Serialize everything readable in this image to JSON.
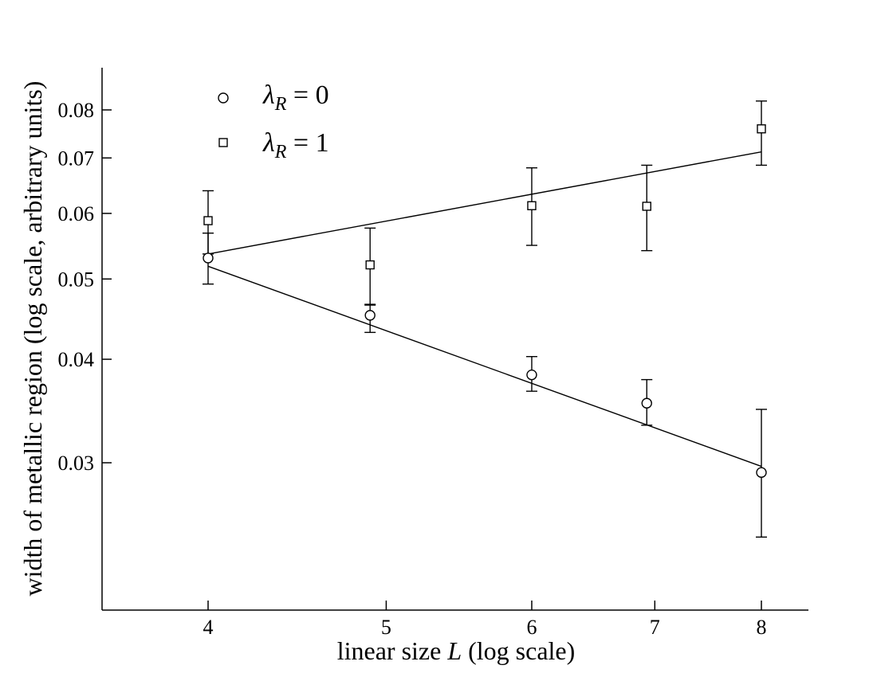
{
  "chart_data": {
    "type": "scatter",
    "xlabel": {
      "pre": "linear size ",
      "var": "L",
      "post": " (log scale)"
    },
    "ylabel": "width of metallic region (log scale, arbitrary units)",
    "x_scale": "log",
    "y_scale": "log",
    "xlim": [
      3.6,
      9.0
    ],
    "ylim": [
      0.0215,
      0.091
    ],
    "x_ticks": [
      4,
      5,
      6,
      7,
      8
    ],
    "x_tick_labels": [
      "4",
      "5",
      "6",
      "7",
      "8"
    ],
    "y_ticks": [
      0.03,
      0.04,
      0.05,
      0.06,
      0.07,
      0.08
    ],
    "y_tick_labels": [
      "0.03",
      "0.04",
      "0.05",
      "0.06",
      "0.07",
      "0.08"
    ],
    "grid": false,
    "legend_position": "top-left",
    "series": [
      {
        "name": "λR = 0",
        "legend": {
          "symbol": "λ",
          "sub": "R",
          "rest": " = 0"
        },
        "marker": "circle",
        "points": [
          {
            "x": 4.0,
            "y": 0.053,
            "err_low": 0.0493,
            "err_high": 0.0568
          },
          {
            "x": 4.9,
            "y": 0.0452,
            "err_low": 0.0431,
            "err_high": 0.0466
          },
          {
            "x": 6.0,
            "y": 0.0383,
            "err_low": 0.0366,
            "err_high": 0.0403
          },
          {
            "x": 6.93,
            "y": 0.0354,
            "err_low": 0.0333,
            "err_high": 0.0378
          },
          {
            "x": 8.0,
            "y": 0.0292,
            "err_low": 0.0244,
            "err_high": 0.0348
          }
        ],
        "fit": {
          "x": [
            4.0,
            8.0
          ],
          "y": [
            0.0518,
            0.0297
          ]
        }
      },
      {
        "name": "λR = 1",
        "legend": {
          "symbol": "λ",
          "sub": "R",
          "rest": " = 1"
        },
        "marker": "square",
        "points": [
          {
            "x": 4.0,
            "y": 0.0588,
            "err_low": 0.0536,
            "err_high": 0.0639
          },
          {
            "x": 4.9,
            "y": 0.052,
            "err_low": 0.0465,
            "err_high": 0.0576
          },
          {
            "x": 6.0,
            "y": 0.0613,
            "err_low": 0.0549,
            "err_high": 0.0681
          },
          {
            "x": 6.93,
            "y": 0.0612,
            "err_low": 0.0541,
            "err_high": 0.0686
          },
          {
            "x": 8.0,
            "y": 0.0759,
            "err_low": 0.0686,
            "err_high": 0.082
          }
        ],
        "fit": {
          "x": [
            4.0,
            8.0
          ],
          "y": [
            0.0536,
            0.0712
          ]
        }
      }
    ]
  }
}
